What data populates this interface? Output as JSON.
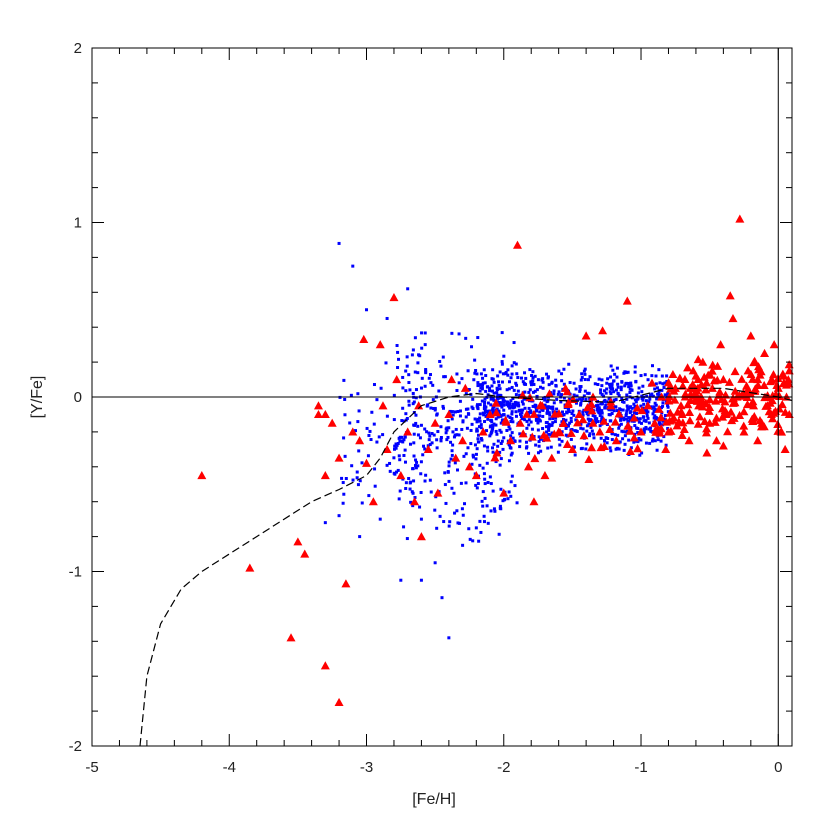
{
  "chart_data": {
    "type": "scatter",
    "title": "",
    "xlabel": "[Fe/H]",
    "ylabel": "[Y/Fe]",
    "xlim": [
      -5,
      0.1
    ],
    "ylim": [
      -2,
      2
    ],
    "x_ticks": [
      {
        "value": -5,
        "label": "-5"
      },
      {
        "value": -4,
        "label": "-4"
      },
      {
        "value": -3,
        "label": "-3"
      },
      {
        "value": -2,
        "label": "-2"
      },
      {
        "value": -1,
        "label": "-1"
      },
      {
        "value": 0,
        "label": "0"
      }
    ],
    "y_ticks": [
      {
        "value": -2,
        "label": "-2"
      },
      {
        "value": -1,
        "label": "-1"
      },
      {
        "value": 0,
        "label": "0"
      },
      {
        "value": 1,
        "label": "1"
      },
      {
        "value": 2,
        "label": "2"
      }
    ],
    "reference_lines": {
      "horizontal_y": 0,
      "vertical_x": 0
    },
    "grid": false,
    "legend": "none",
    "colors": {
      "observed": "#ff0000",
      "simulated": "#0000ff",
      "model": "#000000"
    },
    "series": [
      {
        "marker": "triangle",
        "color": "#ff0000",
        "points": [
          [
            -4.2,
            -0.45
          ],
          [
            -3.85,
            -0.98
          ],
          [
            -3.55,
            -1.38
          ],
          [
            -3.3,
            -1.54
          ],
          [
            -3.2,
            -1.75
          ],
          [
            -3.15,
            -1.07
          ],
          [
            -3.5,
            -0.83
          ],
          [
            -3.45,
            -0.9
          ],
          [
            -3.35,
            -0.05
          ],
          [
            -3.3,
            -0.1
          ],
          [
            -3.35,
            -0.1
          ],
          [
            -3.25,
            -0.15
          ],
          [
            -3.2,
            -0.35
          ],
          [
            -3.3,
            -0.45
          ],
          [
            -3.1,
            -0.2
          ],
          [
            -3.05,
            -0.25
          ],
          [
            -3.0,
            -0.38
          ],
          [
            -3.02,
            0.33
          ],
          [
            -2.95,
            -0.6
          ],
          [
            -2.9,
            0.3
          ],
          [
            -2.88,
            -0.05
          ],
          [
            -2.85,
            -0.3
          ],
          [
            -2.8,
            0.57
          ],
          [
            -2.78,
            0.1
          ],
          [
            -2.75,
            -0.45
          ],
          [
            -2.7,
            -0.2
          ],
          [
            -2.65,
            -0.6
          ],
          [
            -2.62,
            -0.05
          ],
          [
            -2.6,
            -0.8
          ],
          [
            -2.55,
            -0.3
          ],
          [
            -2.5,
            -0.15
          ],
          [
            -2.48,
            -0.55
          ],
          [
            -2.4,
            -0.1
          ],
          [
            -2.38,
            0.1
          ],
          [
            -2.35,
            -0.35
          ],
          [
            -2.3,
            -0.25
          ],
          [
            -2.28,
            0.05
          ],
          [
            -2.25,
            -0.4
          ],
          [
            -2.2,
            -0.45
          ],
          [
            -2.15,
            -0.2
          ],
          [
            -2.1,
            -0.1
          ],
          [
            -2.05,
            -0.32
          ],
          [
            -2.0,
            -0.55
          ],
          [
            -1.95,
            -0.25
          ],
          [
            -1.9,
            0.87
          ],
          [
            -1.88,
            -0.15
          ],
          [
            -1.82,
            -0.4
          ],
          [
            -1.78,
            -0.6
          ],
          [
            -1.72,
            -0.05
          ],
          [
            -1.7,
            -0.45
          ],
          [
            -1.65,
            -0.35
          ],
          [
            -1.6,
            -0.2
          ],
          [
            -1.55,
            0.05
          ],
          [
            -1.5,
            -0.3
          ],
          [
            -1.45,
            -0.1
          ],
          [
            -1.4,
            0.35
          ],
          [
            -1.35,
            -0.15
          ],
          [
            -1.3,
            -0.2
          ],
          [
            -1.28,
            0.38
          ],
          [
            -1.22,
            -0.05
          ],
          [
            -1.18,
            -0.25
          ],
          [
            -1.1,
            0.55
          ],
          [
            -1.05,
            -0.12
          ],
          [
            -1.0,
            -0.2
          ],
          [
            -0.95,
            -0.05
          ],
          [
            -0.9,
            -0.15
          ],
          [
            -0.85,
            0.0
          ],
          [
            -0.8,
            -0.2
          ],
          [
            -0.75,
            0.05
          ],
          [
            -0.7,
            -0.1
          ],
          [
            -0.65,
            -0.25
          ],
          [
            -0.62,
            0.15
          ],
          [
            -0.58,
            -0.05
          ],
          [
            -0.55,
            0.2
          ],
          [
            -0.5,
            -0.15
          ],
          [
            -0.48,
            0.05
          ],
          [
            -0.45,
            -0.25
          ],
          [
            -0.42,
            0.3
          ],
          [
            -0.4,
            0.1
          ],
          [
            -0.38,
            -0.1
          ],
          [
            -0.35,
            0.58
          ],
          [
            -0.33,
            0.45
          ],
          [
            -0.3,
            0.0
          ],
          [
            -0.28,
            1.02
          ],
          [
            -0.25,
            -0.2
          ],
          [
            -0.22,
            0.15
          ],
          [
            -0.2,
            0.35
          ],
          [
            -0.18,
            -0.05
          ],
          [
            -0.15,
            0.1
          ],
          [
            -0.12,
            -0.15
          ],
          [
            -0.1,
            0.25
          ],
          [
            -0.08,
            0.0
          ],
          [
            -0.05,
            -0.1
          ],
          [
            -0.03,
            0.3
          ],
          [
            0.0,
            0.05
          ],
          [
            0.02,
            -0.2
          ],
          [
            0.04,
            0.12
          ],
          [
            0.05,
            -0.3
          ],
          [
            0.06,
            0.0
          ],
          [
            0.08,
            0.15
          ],
          [
            0.08,
            -0.1
          ],
          [
            -0.6,
            0.12
          ],
          [
            -0.7,
            -0.22
          ],
          [
            -0.52,
            -0.32
          ],
          [
            -0.92,
            0.08
          ],
          [
            -0.82,
            -0.3
          ],
          [
            -0.4,
            -0.28
          ],
          [
            -0.15,
            -0.25
          ]
        ]
      },
      {
        "marker": "dot",
        "color": "#0000ff",
        "points": [
          [
            -3.2,
            0.88
          ],
          [
            -3.1,
            0.75
          ],
          [
            -2.7,
            0.62
          ],
          [
            -3.0,
            0.5
          ],
          [
            -2.85,
            0.45
          ],
          [
            -3.3,
            -0.72
          ],
          [
            -3.2,
            -0.68
          ],
          [
            -2.9,
            -0.7
          ],
          [
            -2.6,
            -0.7
          ],
          [
            -2.5,
            -0.95
          ],
          [
            -2.45,
            -1.15
          ],
          [
            -2.4,
            -1.38
          ],
          [
            -2.6,
            -1.05
          ],
          [
            -2.75,
            -1.05
          ],
          [
            -3.05,
            -0.8
          ],
          [
            -2.3,
            -0.85
          ],
          [
            -2.2,
            -0.75
          ]
        ],
        "clouds": [
          {
            "xmin": -2.2,
            "xmax": -0.8,
            "ymin": -0.35,
            "ymax": 0.2,
            "count": 900
          },
          {
            "xmin": -2.8,
            "xmax": -1.9,
            "ymin": -0.9,
            "ymax": 0.45,
            "count": 330
          },
          {
            "xmin": -3.2,
            "xmax": -2.5,
            "ymin": -0.7,
            "ymax": 0.3,
            "count": 90
          }
        ]
      },
      {
        "style": "dashed-line",
        "color": "#000000",
        "points": [
          [
            -4.65,
            -2.0
          ],
          [
            -4.6,
            -1.6
          ],
          [
            -4.5,
            -1.3
          ],
          [
            -4.35,
            -1.1
          ],
          [
            -4.2,
            -1.0
          ],
          [
            -4.0,
            -0.9
          ],
          [
            -3.8,
            -0.8
          ],
          [
            -3.6,
            -0.7
          ],
          [
            -3.4,
            -0.6
          ],
          [
            -3.2,
            -0.53
          ],
          [
            -3.0,
            -0.45
          ],
          [
            -2.9,
            -0.35
          ],
          [
            -2.8,
            -0.2
          ],
          [
            -2.6,
            -0.05
          ],
          [
            -2.4,
            0.0
          ],
          [
            -2.2,
            0.02
          ],
          [
            -2.0,
            0.0
          ],
          [
            -1.6,
            -0.02
          ],
          [
            -1.2,
            -0.03
          ],
          [
            -0.8,
            0.05
          ],
          [
            -0.4,
            0.05
          ],
          [
            0.0,
            0.0
          ],
          [
            0.1,
            -0.02
          ]
        ]
      }
    ]
  }
}
